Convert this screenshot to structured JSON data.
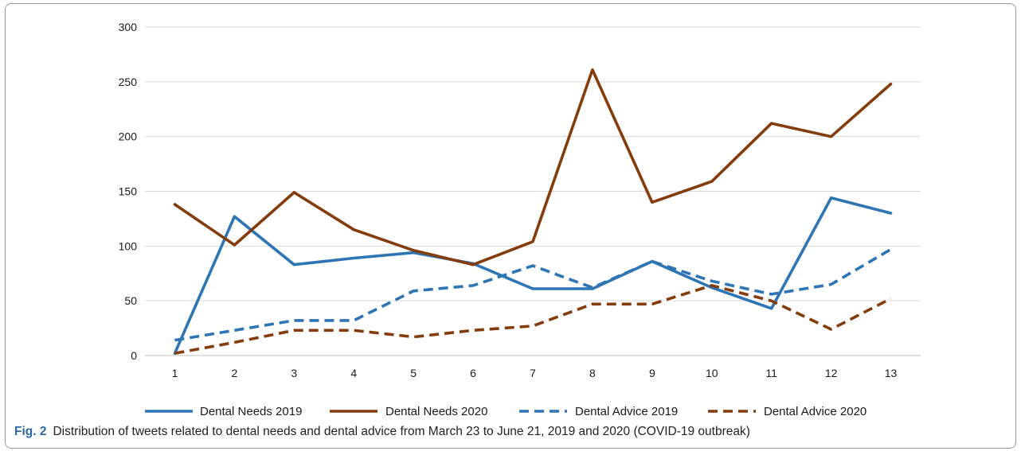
{
  "chart_data": {
    "type": "line",
    "categories": [
      "1",
      "2",
      "3",
      "4",
      "5",
      "6",
      "7",
      "8",
      "9",
      "10",
      "11",
      "12",
      "13"
    ],
    "ylim": [
      0,
      300
    ],
    "yticks": [
      0,
      50,
      100,
      150,
      200,
      250,
      300
    ],
    "grid": true,
    "legend_position": "bottom",
    "series": [
      {
        "name": "Dental Needs 2019",
        "values": [
          2,
          127,
          83,
          89,
          94,
          84,
          61,
          61,
          86,
          62,
          43,
          144,
          130
        ],
        "color": "#2e75b6",
        "dash": false
      },
      {
        "name": "Dental Needs 2020",
        "values": [
          138,
          101,
          149,
          115,
          96,
          83,
          104,
          261,
          140,
          159,
          212,
          200,
          248
        ],
        "color": "#843c0c",
        "dash": false
      },
      {
        "name": "Dental Advice 2019",
        "values": [
          14,
          23,
          32,
          32,
          59,
          64,
          82,
          62,
          86,
          68,
          56,
          65,
          97
        ],
        "color": "#2e75b6",
        "dash": true
      },
      {
        "name": "Dental Advice 2020",
        "values": [
          2,
          12,
          23,
          23,
          17,
          23,
          27,
          47,
          47,
          64,
          50,
          24,
          52
        ],
        "color": "#843c0c",
        "dash": true
      }
    ]
  },
  "caption": {
    "label": "Fig. 2",
    "text": "Distribution of tweets related to dental needs and dental advice from March 23 to June 21, 2019 and 2020 (COVID-19 outbreak)"
  }
}
